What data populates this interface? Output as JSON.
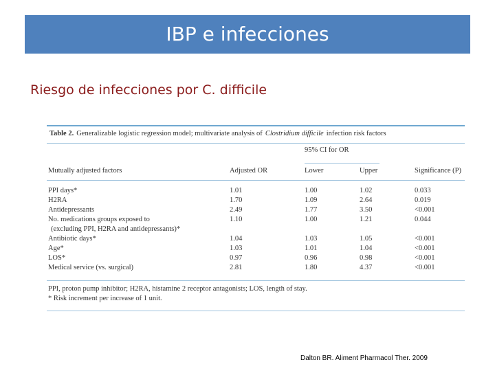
{
  "header": {
    "title": "IBP e infecciones"
  },
  "subtitle": "Riesgo de infecciones por C. difficile",
  "table": {
    "caption": {
      "label": "Table 2.",
      "text": "Generalizable logistic regression model; multivariate analysis of",
      "italic": "Clostridium difficile",
      "suffix": "infection risk factors"
    },
    "group_header": "95% CI for OR",
    "columns": [
      "Mutually adjusted factors",
      "Adjusted OR",
      "Lower",
      "Upper",
      "Significance (P)"
    ],
    "rows": [
      {
        "factor": [
          "PPI days*"
        ],
        "values": [
          "1.01",
          "1.00",
          "1.02",
          "0.033"
        ]
      },
      {
        "factor": [
          "H2RA"
        ],
        "values": [
          "1.70",
          "1.09",
          "2.64",
          "0.019"
        ]
      },
      {
        "factor": [
          "Antidepressants"
        ],
        "values": [
          "2.49",
          "1.77",
          "3.50",
          "<0.001"
        ]
      },
      {
        "factor": [
          "No. medications groups exposed to",
          "(excluding PPI, H2RA and antidepressants)*"
        ],
        "values": [
          "1.10",
          "1.00",
          "1.21",
          "0.044"
        ]
      },
      {
        "factor": [
          "Antibiotic days*"
        ],
        "values": [
          "1.04",
          "1.03",
          "1.05",
          "<0.001"
        ]
      },
      {
        "factor": [
          "Age*"
        ],
        "values": [
          "1.03",
          "1.01",
          "1.04",
          "<0.001"
        ]
      },
      {
        "factor": [
          "LOS*"
        ],
        "values": [
          "0.97",
          "0.96",
          "0.98",
          "<0.001"
        ]
      },
      {
        "factor": [
          "Medical service (vs. surgical)"
        ],
        "values": [
          "2.81",
          "1.80",
          "4.37",
          "<0.001"
        ]
      }
    ],
    "footnotes": [
      "PPI, proton pump inhibitor; H2RA, histamine 2 receptor antagonists; LOS, length of stay.",
      "* Risk increment per increase of 1 unit."
    ]
  },
  "citation": "Dalton BR. Aliment Pharmacol Ther. 2009"
}
